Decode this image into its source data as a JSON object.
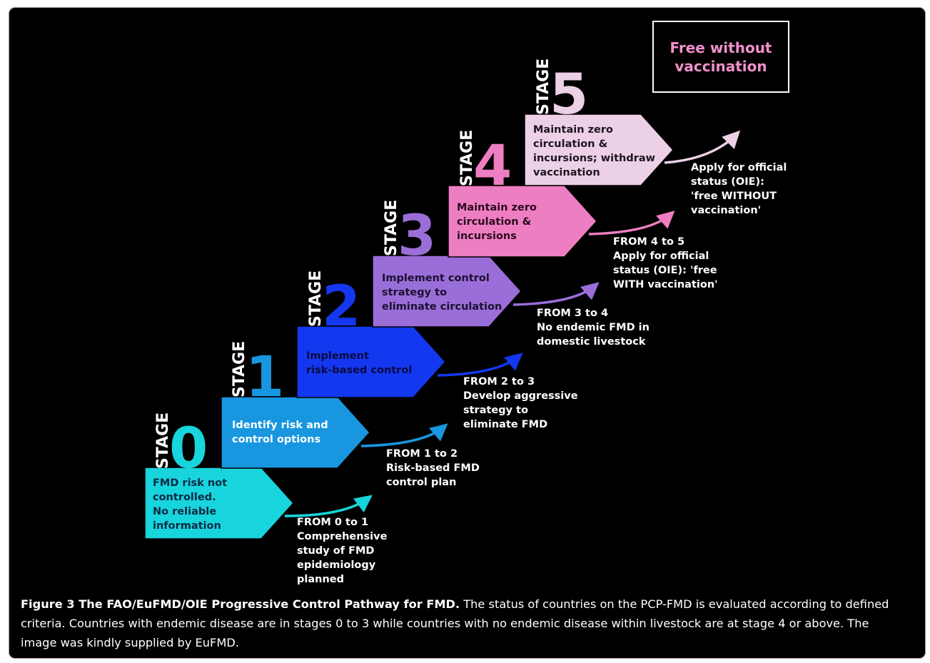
{
  "stages": [
    {
      "stage_word": "STAGE",
      "number": "0",
      "color": "#18d4dc",
      "lines": [
        "FMD risk not",
        "controlled.",
        "No reliable",
        "information"
      ]
    },
    {
      "stage_word": "STAGE",
      "number": "1",
      "color": "#1896e0",
      "lines": [
        "Identify risk and",
        "control options"
      ]
    },
    {
      "stage_word": "STAGE",
      "number": "2",
      "color": "#1438f0",
      "lines": [
        "Implement",
        "risk-based control"
      ]
    },
    {
      "stage_word": "STAGE",
      "number": "3",
      "color": "#9a6ed8",
      "lines": [
        "Implement control",
        "strategy to",
        "eliminate circulation"
      ]
    },
    {
      "stage_word": "STAGE",
      "number": "4",
      "color": "#ee7ec2",
      "lines": [
        "Maintain zero",
        "circulation &",
        "incursions"
      ]
    },
    {
      "stage_word": "STAGE",
      "number": "5",
      "color": "#ecd0e6",
      "lines": [
        "Maintain zero",
        "circulation &",
        "incursions; withdraw",
        "vaccination"
      ]
    }
  ],
  "transitions": [
    {
      "lines": [
        "FROM 0 to 1",
        "Comprehensive",
        "study of FMD",
        "epidemiology",
        "planned"
      ]
    },
    {
      "lines": [
        "FROM 1 to 2",
        "Risk-based FMD",
        "control plan"
      ]
    },
    {
      "lines": [
        "FROM 2 to 3",
        "Develop aggressive",
        "strategy to",
        "eliminate FMD"
      ]
    },
    {
      "lines": [
        "FROM 3 to 4",
        "No endemic FMD in",
        "domestic livestock"
      ]
    },
    {
      "lines": [
        "FROM 4 to 5",
        "Apply for official",
        "status (OIE): 'free",
        "WITH vaccination'"
      ]
    },
    {
      "lines": [
        "Apply for official",
        "status (OIE):",
        "'free WITHOUT",
        "vaccination'"
      ]
    }
  ],
  "final_box": {
    "lines": [
      "Free without",
      "vaccination"
    ],
    "color": "#f090cc"
  },
  "caption": {
    "title": "Figure 3 The FAO/EuFMD/OIE Progressive Control Pathway for FMD.",
    "body": " The status of countries on the PCP-FMD is evaluated according to defined criteria. Countries with endemic disease are in stages 0 to 3 while countries with no endemic disease within livestock are at stage 4 or above. The image was kindly supplied by EuFMD."
  }
}
